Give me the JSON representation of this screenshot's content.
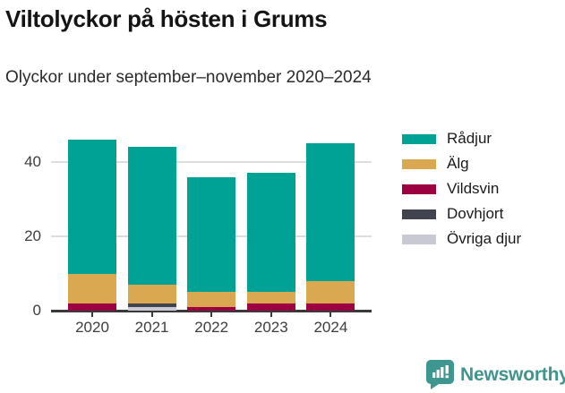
{
  "header": {
    "title": "Viltolyckor på hösten i Grums",
    "subtitle": "Olyckor under september–november 2020–2024"
  },
  "chart_data": {
    "type": "bar",
    "stacked": true,
    "title": "Viltolyckor på hösten i Grums",
    "subtitle": "Olyckor under september–november 2020–2024",
    "categories": [
      "2020",
      "2021",
      "2022",
      "2023",
      "2024"
    ],
    "series": [
      {
        "name": "Rådjur",
        "color": "#00A296",
        "values": [
          36,
          37,
          31,
          32,
          37
        ]
      },
      {
        "name": "Älg",
        "color": "#D9A850",
        "values": [
          8,
          5,
          4,
          3,
          6
        ]
      },
      {
        "name": "Vildsvin",
        "color": "#9C0040",
        "values": [
          2,
          0,
          1,
          2,
          2
        ]
      },
      {
        "name": "Dovhjort",
        "color": "#41434F",
        "values": [
          0,
          1,
          0,
          0,
          0
        ]
      },
      {
        "name": "Övriga djur",
        "color": "#C8C9D3",
        "values": [
          0,
          1,
          0,
          0,
          0
        ]
      }
    ],
    "totals": [
      46,
      44,
      36,
      37,
      45
    ],
    "stack_order_bottom_to_top": [
      "Övriga djur",
      "Dovhjort",
      "Vildsvin",
      "Älg",
      "Rådjur"
    ],
    "xlabel": "",
    "ylabel": "",
    "yticks": [
      0,
      20,
      40
    ],
    "ylim": [
      0,
      50
    ],
    "grid": true,
    "gridline_color": "#dddddd",
    "axis_color": "#3a3a3a",
    "legend_position": "right"
  },
  "footer": {
    "brand": "Newsworthy",
    "brand_color": "#40948E",
    "icon": "newsworthy-speech-bubble-bar-chart-icon"
  }
}
